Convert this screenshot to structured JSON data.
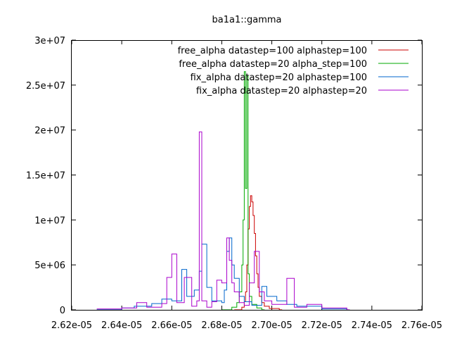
{
  "chart_data": {
    "type": "line",
    "title": "ba1a1::gamma",
    "xlabel": "",
    "ylabel": "",
    "xlim": [
      2.62e-05,
      2.76e-05
    ],
    "ylim": [
      0,
      30000000
    ],
    "x_ticks": [
      2.62e-05,
      2.64e-05,
      2.66e-05,
      2.68e-05,
      2.7e-05,
      2.72e-05,
      2.74e-05,
      2.76e-05
    ],
    "x_tick_labels": [
      "2.62e-05",
      "2.64e-05",
      "2.66e-05",
      "2.68e-05",
      "2.70e-05",
      "2.72e-05",
      "2.74e-05",
      "2.76e-05"
    ],
    "y_ticks": [
      0,
      5000000,
      10000000,
      15000000,
      20000000,
      25000000,
      30000000
    ],
    "y_tick_labels": [
      "0",
      "5e+06",
      "1e+07",
      "1.5e+07",
      "2e+07",
      "2.5e+07",
      "3e+07"
    ],
    "grid": false,
    "legend_position": "top-right",
    "step_style": "histogram steps",
    "series": [
      {
        "name": "free_alpha datastep=100 alphastep=100",
        "color": "#cc0000",
        "points": [
          [
            2.685e-05,
            0
          ],
          [
            2.688e-05,
            300000
          ],
          [
            2.689e-05,
            900000
          ],
          [
            2.6895e-05,
            2000000
          ],
          [
            2.69e-05,
            5000000
          ],
          [
            2.6905e-05,
            9000000
          ],
          [
            2.691e-05,
            11500000
          ],
          [
            2.6915e-05,
            12700000
          ],
          [
            2.692e-05,
            12000000
          ],
          [
            2.6925e-05,
            10500000
          ],
          [
            2.693e-05,
            8500000
          ],
          [
            2.6935e-05,
            6000000
          ],
          [
            2.694e-05,
            4000000
          ],
          [
            2.6945e-05,
            2500000
          ],
          [
            2.695e-05,
            1500000
          ],
          [
            2.696e-05,
            800000
          ],
          [
            2.697e-05,
            400000
          ],
          [
            2.699e-05,
            150000
          ],
          [
            2.703e-05,
            0
          ]
        ]
      },
      {
        "name": "free_alpha datastep=20 alpha_step=100",
        "color": "#00aa00",
        "points": [
          [
            2.68e-05,
            0
          ],
          [
            2.684e-05,
            300000
          ],
          [
            2.686e-05,
            800000
          ],
          [
            2.687e-05,
            2000000
          ],
          [
            2.688e-05,
            5000000
          ],
          [
            2.6885e-05,
            10000000
          ],
          [
            2.689e-05,
            26500000
          ],
          [
            2.6895e-05,
            13500000
          ],
          [
            2.69e-05,
            26000000
          ],
          [
            2.6905e-05,
            4000000
          ],
          [
            2.691e-05,
            1500000
          ],
          [
            2.692e-05,
            600000
          ],
          [
            2.694e-05,
            200000
          ],
          [
            2.696e-05,
            0
          ]
        ]
      },
      {
        "name": "fix_alpha datastep=20 alphastep=100",
        "color": "#0066cc",
        "points": [
          [
            2.63e-05,
            0
          ],
          [
            2.64e-05,
            200000
          ],
          [
            2.645e-05,
            400000
          ],
          [
            2.652e-05,
            700000
          ],
          [
            2.656e-05,
            1200000
          ],
          [
            2.66e-05,
            1000000
          ],
          [
            2.664e-05,
            4500000
          ],
          [
            2.666e-05,
            1500000
          ],
          [
            2.669e-05,
            2200000
          ],
          [
            2.671e-05,
            4300000
          ],
          [
            2.672e-05,
            7300000
          ],
          [
            2.674e-05,
            2500000
          ],
          [
            2.676e-05,
            1000000
          ],
          [
            2.68e-05,
            800000
          ],
          [
            2.681e-05,
            2200000
          ],
          [
            2.682e-05,
            6500000
          ],
          [
            2.683e-05,
            8000000
          ],
          [
            2.684e-05,
            5000000
          ],
          [
            2.685e-05,
            3500000
          ],
          [
            2.687e-05,
            1500000
          ],
          [
            2.689e-05,
            900000
          ],
          [
            2.692e-05,
            500000
          ],
          [
            2.696e-05,
            2600000
          ],
          [
            2.698e-05,
            1500000
          ],
          [
            2.702e-05,
            1000000
          ],
          [
            2.706e-05,
            600000
          ],
          [
            2.71e-05,
            400000
          ],
          [
            2.72e-05,
            100000
          ],
          [
            2.73e-05,
            0
          ]
        ]
      },
      {
        "name": "fix_alpha datastep=20 alphastep=20",
        "color": "#aa00cc",
        "points": [
          [
            2.63e-05,
            100000
          ],
          [
            2.64e-05,
            200000
          ],
          [
            2.646e-05,
            800000
          ],
          [
            2.65e-05,
            300000
          ],
          [
            2.656e-05,
            700000
          ],
          [
            2.658e-05,
            3600000
          ],
          [
            2.66e-05,
            6200000
          ],
          [
            2.662e-05,
            800000
          ],
          [
            2.665e-05,
            3600000
          ],
          [
            2.668e-05,
            400000
          ],
          [
            2.67e-05,
            1000000
          ],
          [
            2.671e-05,
            19800000
          ],
          [
            2.672e-05,
            1000000
          ],
          [
            2.674e-05,
            300000
          ],
          [
            2.676e-05,
            900000
          ],
          [
            2.678e-05,
            3300000
          ],
          [
            2.68e-05,
            3000000
          ],
          [
            2.682e-05,
            8000000
          ],
          [
            2.683e-05,
            5500000
          ],
          [
            2.684e-05,
            3000000
          ],
          [
            2.685e-05,
            2000000
          ],
          [
            2.687e-05,
            800000
          ],
          [
            2.689e-05,
            500000
          ],
          [
            2.691e-05,
            3000000
          ],
          [
            2.693e-05,
            6500000
          ],
          [
            2.695e-05,
            2000000
          ],
          [
            2.697e-05,
            1000000
          ],
          [
            2.7e-05,
            600000
          ],
          [
            2.706e-05,
            3500000
          ],
          [
            2.709e-05,
            300000
          ],
          [
            2.714e-05,
            600000
          ],
          [
            2.72e-05,
            200000
          ],
          [
            2.73e-05,
            0
          ]
        ]
      }
    ]
  }
}
